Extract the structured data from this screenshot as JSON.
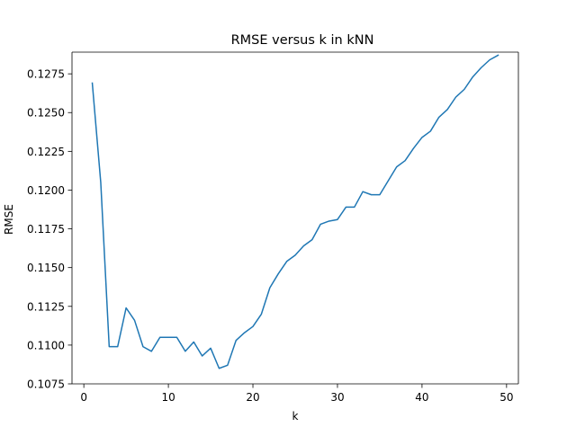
{
  "chart_data": {
    "type": "line",
    "title": "RMSE versus k in kNN",
    "xlabel": "k",
    "ylabel": "RMSE",
    "xlim": [
      -1.4,
      51.4
    ],
    "ylim": [
      0.1075,
      0.1289
    ],
    "xticks": [
      0,
      10,
      20,
      30,
      40,
      50
    ],
    "xtick_labels": [
      "0",
      "10",
      "20",
      "30",
      "40",
      "50"
    ],
    "yticks": [
      0.1075,
      0.11,
      0.1125,
      0.115,
      0.1175,
      0.12,
      0.1225,
      0.125,
      0.1275
    ],
    "ytick_labels": [
      "0.1075",
      "0.1100",
      "0.1125",
      "0.1150",
      "0.1175",
      "0.1200",
      "0.1225",
      "0.1250",
      "0.1275"
    ],
    "grid": false,
    "series": [
      {
        "color": "#1f77b4",
        "x": [
          1,
          2,
          3,
          4,
          5,
          6,
          7,
          8,
          9,
          10,
          11,
          12,
          13,
          14,
          15,
          16,
          17,
          18,
          19,
          20,
          21,
          22,
          23,
          24,
          25,
          26,
          27,
          28,
          29,
          30,
          31,
          32,
          33,
          34,
          35,
          36,
          37,
          38,
          39,
          40,
          41,
          42,
          43,
          44,
          45,
          46,
          47,
          48,
          49
        ],
        "y": [
          0.1269,
          0.1205,
          0.1099,
          0.1099,
          0.1124,
          0.1116,
          0.1099,
          0.1096,
          0.1105,
          0.1105,
          0.1105,
          0.1096,
          0.1102,
          0.1093,
          0.1098,
          0.1085,
          0.1087,
          0.1103,
          0.1108,
          0.1112,
          0.112,
          0.1137,
          0.1146,
          0.1154,
          0.1158,
          0.1164,
          0.1168,
          0.1178,
          0.118,
          0.1181,
          0.1189,
          0.1189,
          0.1199,
          0.1197,
          0.1197,
          0.1206,
          0.1215,
          0.1219,
          0.1227,
          0.1234,
          0.1238,
          0.1247,
          0.1252,
          0.126,
          0.1265,
          0.1273,
          0.1279,
          0.1284,
          0.1287
        ]
      }
    ]
  }
}
